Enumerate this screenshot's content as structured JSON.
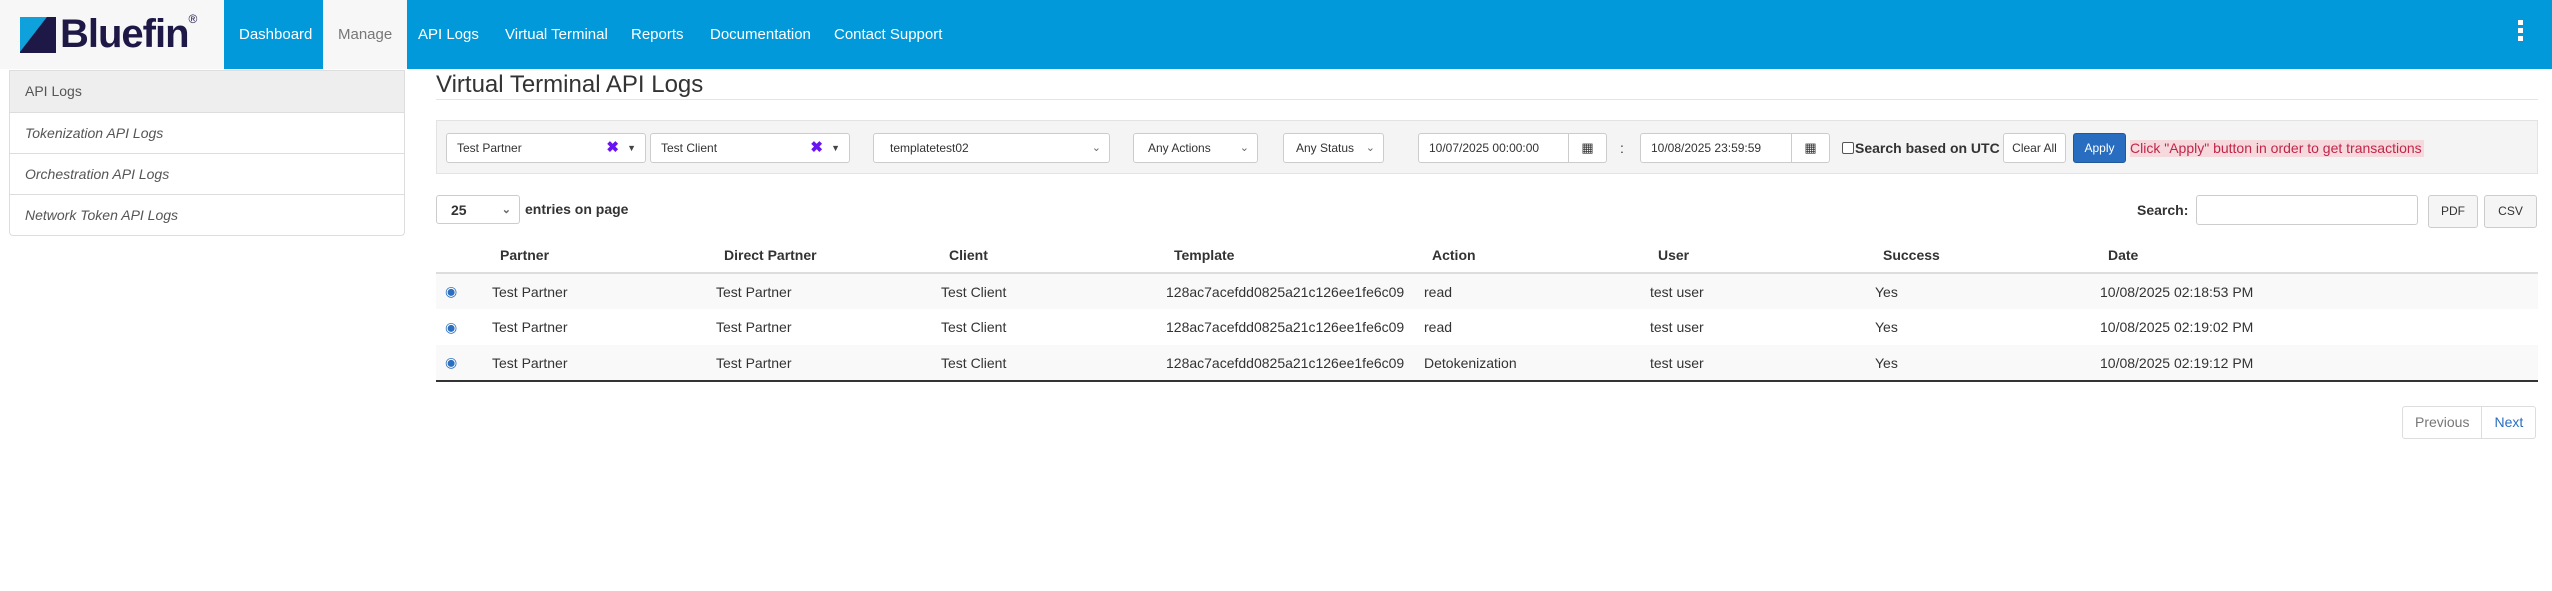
{
  "brand": {
    "name": "Bluefin",
    "reg": "®"
  },
  "nav": {
    "items": [
      "Dashboard",
      "Manage",
      "API Logs",
      "Virtual Terminal",
      "Reports",
      "Documentation",
      "Contact Support"
    ],
    "active": "Manage",
    "color": "#0199d9"
  },
  "sidebar": {
    "header": "API Logs",
    "items": [
      "Tokenization API Logs",
      "Orchestration API Logs",
      "Network Token API Logs"
    ]
  },
  "page": {
    "title": "Virtual Terminal API Logs"
  },
  "filters": {
    "partner": "Test Partner",
    "client": "Test Client",
    "template": "templatetest02",
    "action": "Any Actions",
    "status": "Any Status",
    "date_from": "10/07/2025 00:00:00",
    "date_sep": ":",
    "date_to": "10/08/2025 23:59:59",
    "utc_label": "Search based on UTC",
    "clear": "Clear All",
    "apply": "Apply",
    "message": "Click \"Apply\" button in order to get transactions"
  },
  "table_controls": {
    "entries": "25",
    "entries_label": "entries on page",
    "search_label": "Search:",
    "search_value": "",
    "pdf": "PDF",
    "csv": "CSV"
  },
  "table": {
    "headers": [
      "Partner",
      "Direct Partner",
      "Client",
      "Template",
      "Action",
      "User",
      "Success",
      "Date"
    ],
    "rows": [
      [
        "Test Partner",
        "Test Partner",
        "Test Client",
        "128ac7acefdd0825a21c126ee1fe6c09",
        "read",
        "test user",
        "Yes",
        "10/08/2025 02:18:53 PM"
      ],
      [
        "Test Partner",
        "Test Partner",
        "Test Client",
        "128ac7acefdd0825a21c126ee1fe6c09",
        "read",
        "test user",
        "Yes",
        "10/08/2025 02:19:02 PM"
      ],
      [
        "Test Partner",
        "Test Partner",
        "Test Client",
        "128ac7acefdd0825a21c126ee1fe6c09",
        "Detokenization",
        "test user",
        "Yes",
        "10/08/2025 02:19:12 PM"
      ]
    ]
  },
  "pagination": {
    "previous": "Previous",
    "next": "Next"
  }
}
